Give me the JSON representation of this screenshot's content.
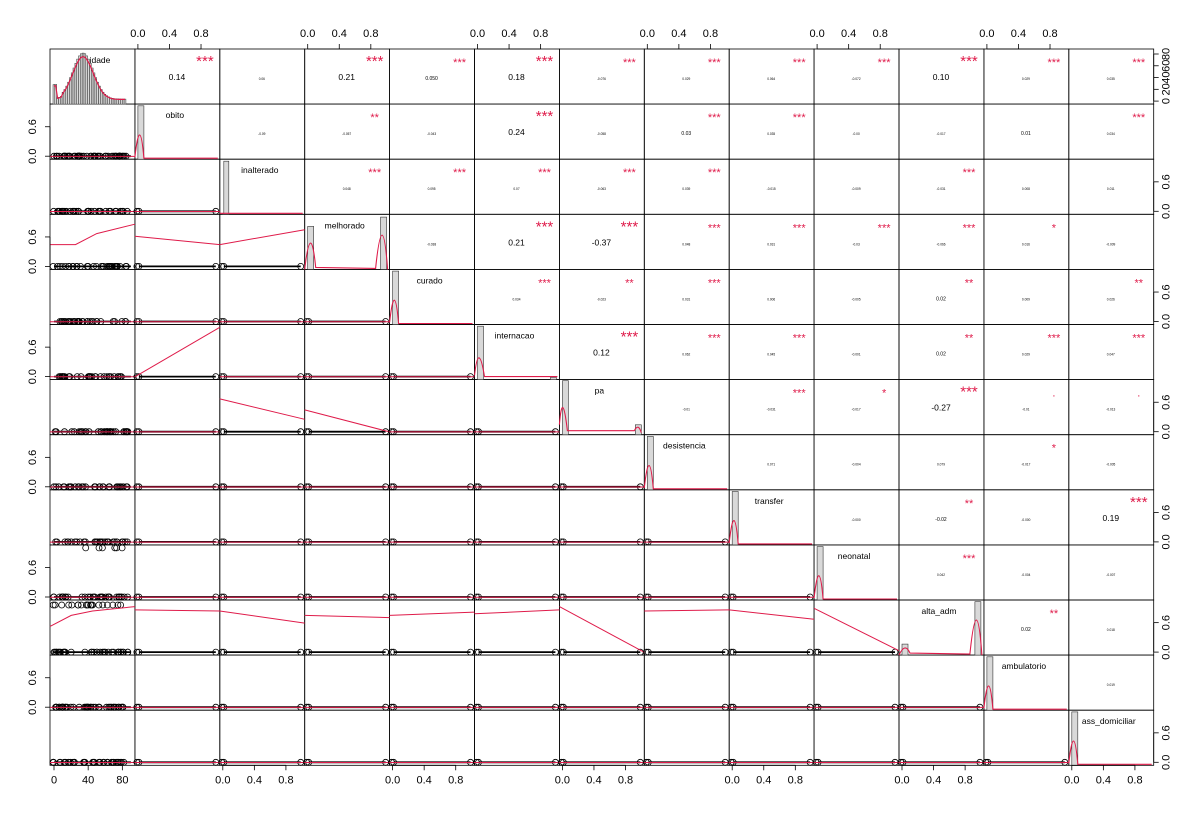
{
  "chart_data": {
    "type": "scatter",
    "variables": [
      "idade",
      "obito",
      "inalterado",
      "melhorado",
      "curado",
      "internacao",
      "pa",
      "desistencia",
      "transfer",
      "neonatal",
      "alta_adm",
      "ambulatorio",
      "ass_domiciliar"
    ],
    "correlations": [
      {
        "row": 0,
        "col": 1,
        "value": "0.14",
        "stars": "***",
        "size": "large"
      },
      {
        "row": 0,
        "col": 2,
        "value": "0.06",
        "stars": "",
        "size": "tiny"
      },
      {
        "row": 0,
        "col": 3,
        "value": "0.21",
        "stars": "***",
        "size": "large"
      },
      {
        "row": 0,
        "col": 4,
        "value": "0.050",
        "stars": "***",
        "size": "small"
      },
      {
        "row": 0,
        "col": 5,
        "value": "0.18",
        "stars": "***",
        "size": "large"
      },
      {
        "row": 0,
        "col": 6,
        "value": "-0.076",
        "stars": "***",
        "size": "tiny"
      },
      {
        "row": 0,
        "col": 7,
        "value": "0.029",
        "stars": "***",
        "size": "tiny"
      },
      {
        "row": 0,
        "col": 8,
        "value": "0.064",
        "stars": "***",
        "size": "tiny"
      },
      {
        "row": 0,
        "col": 9,
        "value": "-0.072",
        "stars": "***",
        "size": "tiny"
      },
      {
        "row": 0,
        "col": 10,
        "value": "0.10",
        "stars": "***",
        "size": "large"
      },
      {
        "row": 0,
        "col": 11,
        "value": "0.029",
        "stars": "***",
        "size": "tiny"
      },
      {
        "row": 0,
        "col": 12,
        "value": "0.035",
        "stars": "***",
        "size": "tiny"
      },
      {
        "row": 1,
        "col": 2,
        "value": "-0.09",
        "stars": "",
        "size": "tiny"
      },
      {
        "row": 1,
        "col": 3,
        "value": "-0.057",
        "stars": "**",
        "size": "tiny"
      },
      {
        "row": 1,
        "col": 4,
        "value": "-0.043",
        "stars": "",
        "size": "tiny"
      },
      {
        "row": 1,
        "col": 5,
        "value": "0.24",
        "stars": "***",
        "size": "large"
      },
      {
        "row": 1,
        "col": 6,
        "value": "-0.058",
        "stars": "",
        "size": "tiny"
      },
      {
        "row": 1,
        "col": 7,
        "value": "0.03",
        "stars": "***",
        "size": "small"
      },
      {
        "row": 1,
        "col": 8,
        "value": "0.035",
        "stars": "***",
        "size": "tiny"
      },
      {
        "row": 1,
        "col": 9,
        "value": "-0.00",
        "stars": "",
        "size": "tiny"
      },
      {
        "row": 1,
        "col": 10,
        "value": "-0.017",
        "stars": "",
        "size": "tiny"
      },
      {
        "row": 1,
        "col": 11,
        "value": "0.01",
        "stars": "",
        "size": "small"
      },
      {
        "row": 1,
        "col": 12,
        "value": "0.034",
        "stars": "***",
        "size": "tiny"
      },
      {
        "row": 2,
        "col": 3,
        "value": "0.048",
        "stars": "***",
        "size": "tiny"
      },
      {
        "row": 2,
        "col": 4,
        "value": "0.095",
        "stars": "***",
        "size": "tiny"
      },
      {
        "row": 2,
        "col": 5,
        "value": "0.07",
        "stars": "***",
        "size": "tiny"
      },
      {
        "row": 2,
        "col": 6,
        "value": "-0.063",
        "stars": "***",
        "size": "tiny"
      },
      {
        "row": 2,
        "col": 7,
        "value": "0.039",
        "stars": "***",
        "size": "tiny"
      },
      {
        "row": 2,
        "col": 8,
        "value": "-0.015",
        "stars": "",
        "size": "tiny"
      },
      {
        "row": 2,
        "col": 9,
        "value": "-0.009",
        "stars": "",
        "size": "tiny"
      },
      {
        "row": 2,
        "col": 10,
        "value": "-0.031",
        "stars": "***",
        "size": "tiny"
      },
      {
        "row": 2,
        "col": 11,
        "value": "0.008",
        "stars": "",
        "size": "tiny"
      },
      {
        "row": 2,
        "col": 12,
        "value": "0.011",
        "stars": "",
        "size": "tiny"
      },
      {
        "row": 3,
        "col": 4,
        "value": "-0.038",
        "stars": "",
        "size": "tiny"
      },
      {
        "row": 3,
        "col": 5,
        "value": "0.21",
        "stars": "***",
        "size": "large"
      },
      {
        "row": 3,
        "col": 6,
        "value": "-0.37",
        "stars": "***",
        "size": "large"
      },
      {
        "row": 3,
        "col": 7,
        "value": "0.048",
        "stars": "***",
        "size": "tiny"
      },
      {
        "row": 3,
        "col": 8,
        "value": "0.031",
        "stars": "***",
        "size": "tiny"
      },
      {
        "row": 3,
        "col": 9,
        "value": "-0.03",
        "stars": "***",
        "size": "tiny"
      },
      {
        "row": 3,
        "col": 10,
        "value": "-0.066",
        "stars": "***",
        "size": "tiny"
      },
      {
        "row": 3,
        "col": 11,
        "value": "0.016",
        "stars": "*",
        "size": "tiny"
      },
      {
        "row": 3,
        "col": 12,
        "value": "-0.009",
        "stars": "",
        "size": "tiny"
      },
      {
        "row": 4,
        "col": 5,
        "value": "0.034",
        "stars": "***",
        "size": "tiny"
      },
      {
        "row": 4,
        "col": 6,
        "value": "-0.023",
        "stars": "**",
        "size": "tiny"
      },
      {
        "row": 4,
        "col": 7,
        "value": "0.031",
        "stars": "***",
        "size": "tiny"
      },
      {
        "row": 4,
        "col": 8,
        "value": "0.006",
        "stars": "",
        "size": "tiny"
      },
      {
        "row": 4,
        "col": 9,
        "value": "-0.005",
        "stars": "",
        "size": "tiny"
      },
      {
        "row": 4,
        "col": 10,
        "value": "0.02",
        "stars": "**",
        "size": "small"
      },
      {
        "row": 4,
        "col": 11,
        "value": "0.009",
        "stars": "",
        "size": "tiny"
      },
      {
        "row": 4,
        "col": 12,
        "value": "0.026",
        "stars": "**",
        "size": "tiny"
      },
      {
        "row": 5,
        "col": 6,
        "value": "0.12",
        "stars": "***",
        "size": "large"
      },
      {
        "row": 5,
        "col": 7,
        "value": "0.062",
        "stars": "***",
        "size": "tiny"
      },
      {
        "row": 5,
        "col": 8,
        "value": "0.045",
        "stars": "***",
        "size": "tiny"
      },
      {
        "row": 5,
        "col": 9,
        "value": "-0.001",
        "stars": "",
        "size": "tiny"
      },
      {
        "row": 5,
        "col": 10,
        "value": "0.02",
        "stars": "**",
        "size": "small"
      },
      {
        "row": 5,
        "col": 11,
        "value": "0.029",
        "stars": "***",
        "size": "tiny"
      },
      {
        "row": 5,
        "col": 12,
        "value": "0.047",
        "stars": "***",
        "size": "tiny"
      },
      {
        "row": 6,
        "col": 7,
        "value": "-0.01",
        "stars": "",
        "size": "tiny"
      },
      {
        "row": 6,
        "col": 8,
        "value": "-0.031",
        "stars": "***",
        "size": "tiny"
      },
      {
        "row": 6,
        "col": 9,
        "value": "-0.017",
        "stars": "*",
        "size": "tiny"
      },
      {
        "row": 6,
        "col": 10,
        "value": "-0.27",
        "stars": "***",
        "size": "large"
      },
      {
        "row": 6,
        "col": 11,
        "value": "-0.01",
        "stars": ".",
        "size": "tiny"
      },
      {
        "row": 6,
        "col": 12,
        "value": "-0.013",
        "stars": ".",
        "size": "tiny"
      },
      {
        "row": 7,
        "col": 8,
        "value": "0.071",
        "stars": "",
        "size": "tiny"
      },
      {
        "row": 7,
        "col": 9,
        "value": "-0.004",
        "stars": "",
        "size": "tiny"
      },
      {
        "row": 7,
        "col": 10,
        "value": "0.079",
        "stars": "",
        "size": "tiny"
      },
      {
        "row": 7,
        "col": 11,
        "value": "-0.017",
        "stars": "*",
        "size": "tiny"
      },
      {
        "row": 7,
        "col": 12,
        "value": "-0.005",
        "stars": "",
        "size": "tiny"
      },
      {
        "row": 8,
        "col": 9,
        "value": "-0.000",
        "stars": "",
        "size": "tiny"
      },
      {
        "row": 8,
        "col": 10,
        "value": "-0.02",
        "stars": "**",
        "size": "small"
      },
      {
        "row": 8,
        "col": 11,
        "value": "-0.000",
        "stars": "",
        "size": "tiny"
      },
      {
        "row": 8,
        "col": 12,
        "value": "0.19",
        "stars": "***",
        "size": "large"
      },
      {
        "row": 9,
        "col": 10,
        "value": "0.042",
        "stars": "***",
        "size": "tiny"
      },
      {
        "row": 9,
        "col": 11,
        "value": "-0.004",
        "stars": "",
        "size": "tiny"
      },
      {
        "row": 9,
        "col": 12,
        "value": "-0.007",
        "stars": "",
        "size": "tiny"
      },
      {
        "row": 10,
        "col": 11,
        "value": "0.02",
        "stars": "**",
        "size": "small"
      },
      {
        "row": 10,
        "col": 12,
        "value": "0.018",
        "stars": "",
        "size": "tiny"
      },
      {
        "row": 11,
        "col": 12,
        "value": "0.019",
        "stars": "",
        "size": "tiny"
      }
    ],
    "axes": {
      "idade_ticks": [
        "0",
        "40",
        "80"
      ],
      "idade_range": [
        0,
        90
      ],
      "idade_freq_ticks": [
        "0",
        "20",
        "40",
        "60",
        "80"
      ],
      "binary_ticks": [
        "0.0",
        "0.4",
        "0.8"
      ],
      "binary_left_ticks": [
        "0.0",
        "0.6"
      ],
      "binary_range": [
        0,
        1
      ]
    },
    "grid": false,
    "legend": "none"
  }
}
